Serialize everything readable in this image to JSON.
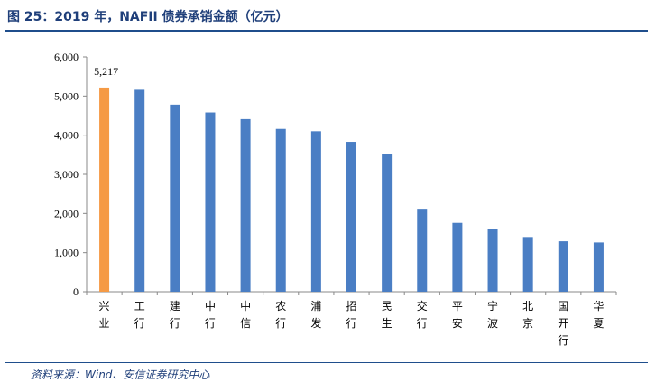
{
  "figure": {
    "title": "图 25：2019 年，NAFII 债券承销金额（亿元）",
    "source": "资料来源：Wind、安信证券研究中心"
  },
  "colors": {
    "bar": "#4a7ec4",
    "highlight": "#f59a45",
    "axis": "#888888",
    "rule": "#1f4e8c",
    "title": "#1f3f7a"
  },
  "chart_data": {
    "type": "bar",
    "title": "",
    "xlabel": "",
    "ylabel": "",
    "categories": [
      "兴业",
      "工行",
      "建行",
      "中行",
      "中信",
      "农行",
      "浦发",
      "招行",
      "民生",
      "交行",
      "平安",
      "宁波",
      "北京",
      "国开行",
      "华夏"
    ],
    "values": [
      5217,
      5160,
      4780,
      4580,
      4410,
      4160,
      4100,
      3830,
      3520,
      2120,
      1760,
      1600,
      1400,
      1290,
      1260
    ],
    "highlight_index": 0,
    "data_labels": [
      {
        "index": 0,
        "text": "5,217"
      }
    ],
    "ylim": [
      0,
      6000
    ],
    "yticks": [
      0,
      1000,
      2000,
      3000,
      4000,
      5000,
      6000
    ],
    "ytick_labels": [
      "0",
      "1,000",
      "2,000",
      "3,000",
      "4,000",
      "5,000",
      "6,000"
    ],
    "grid": false,
    "legend": "none"
  }
}
